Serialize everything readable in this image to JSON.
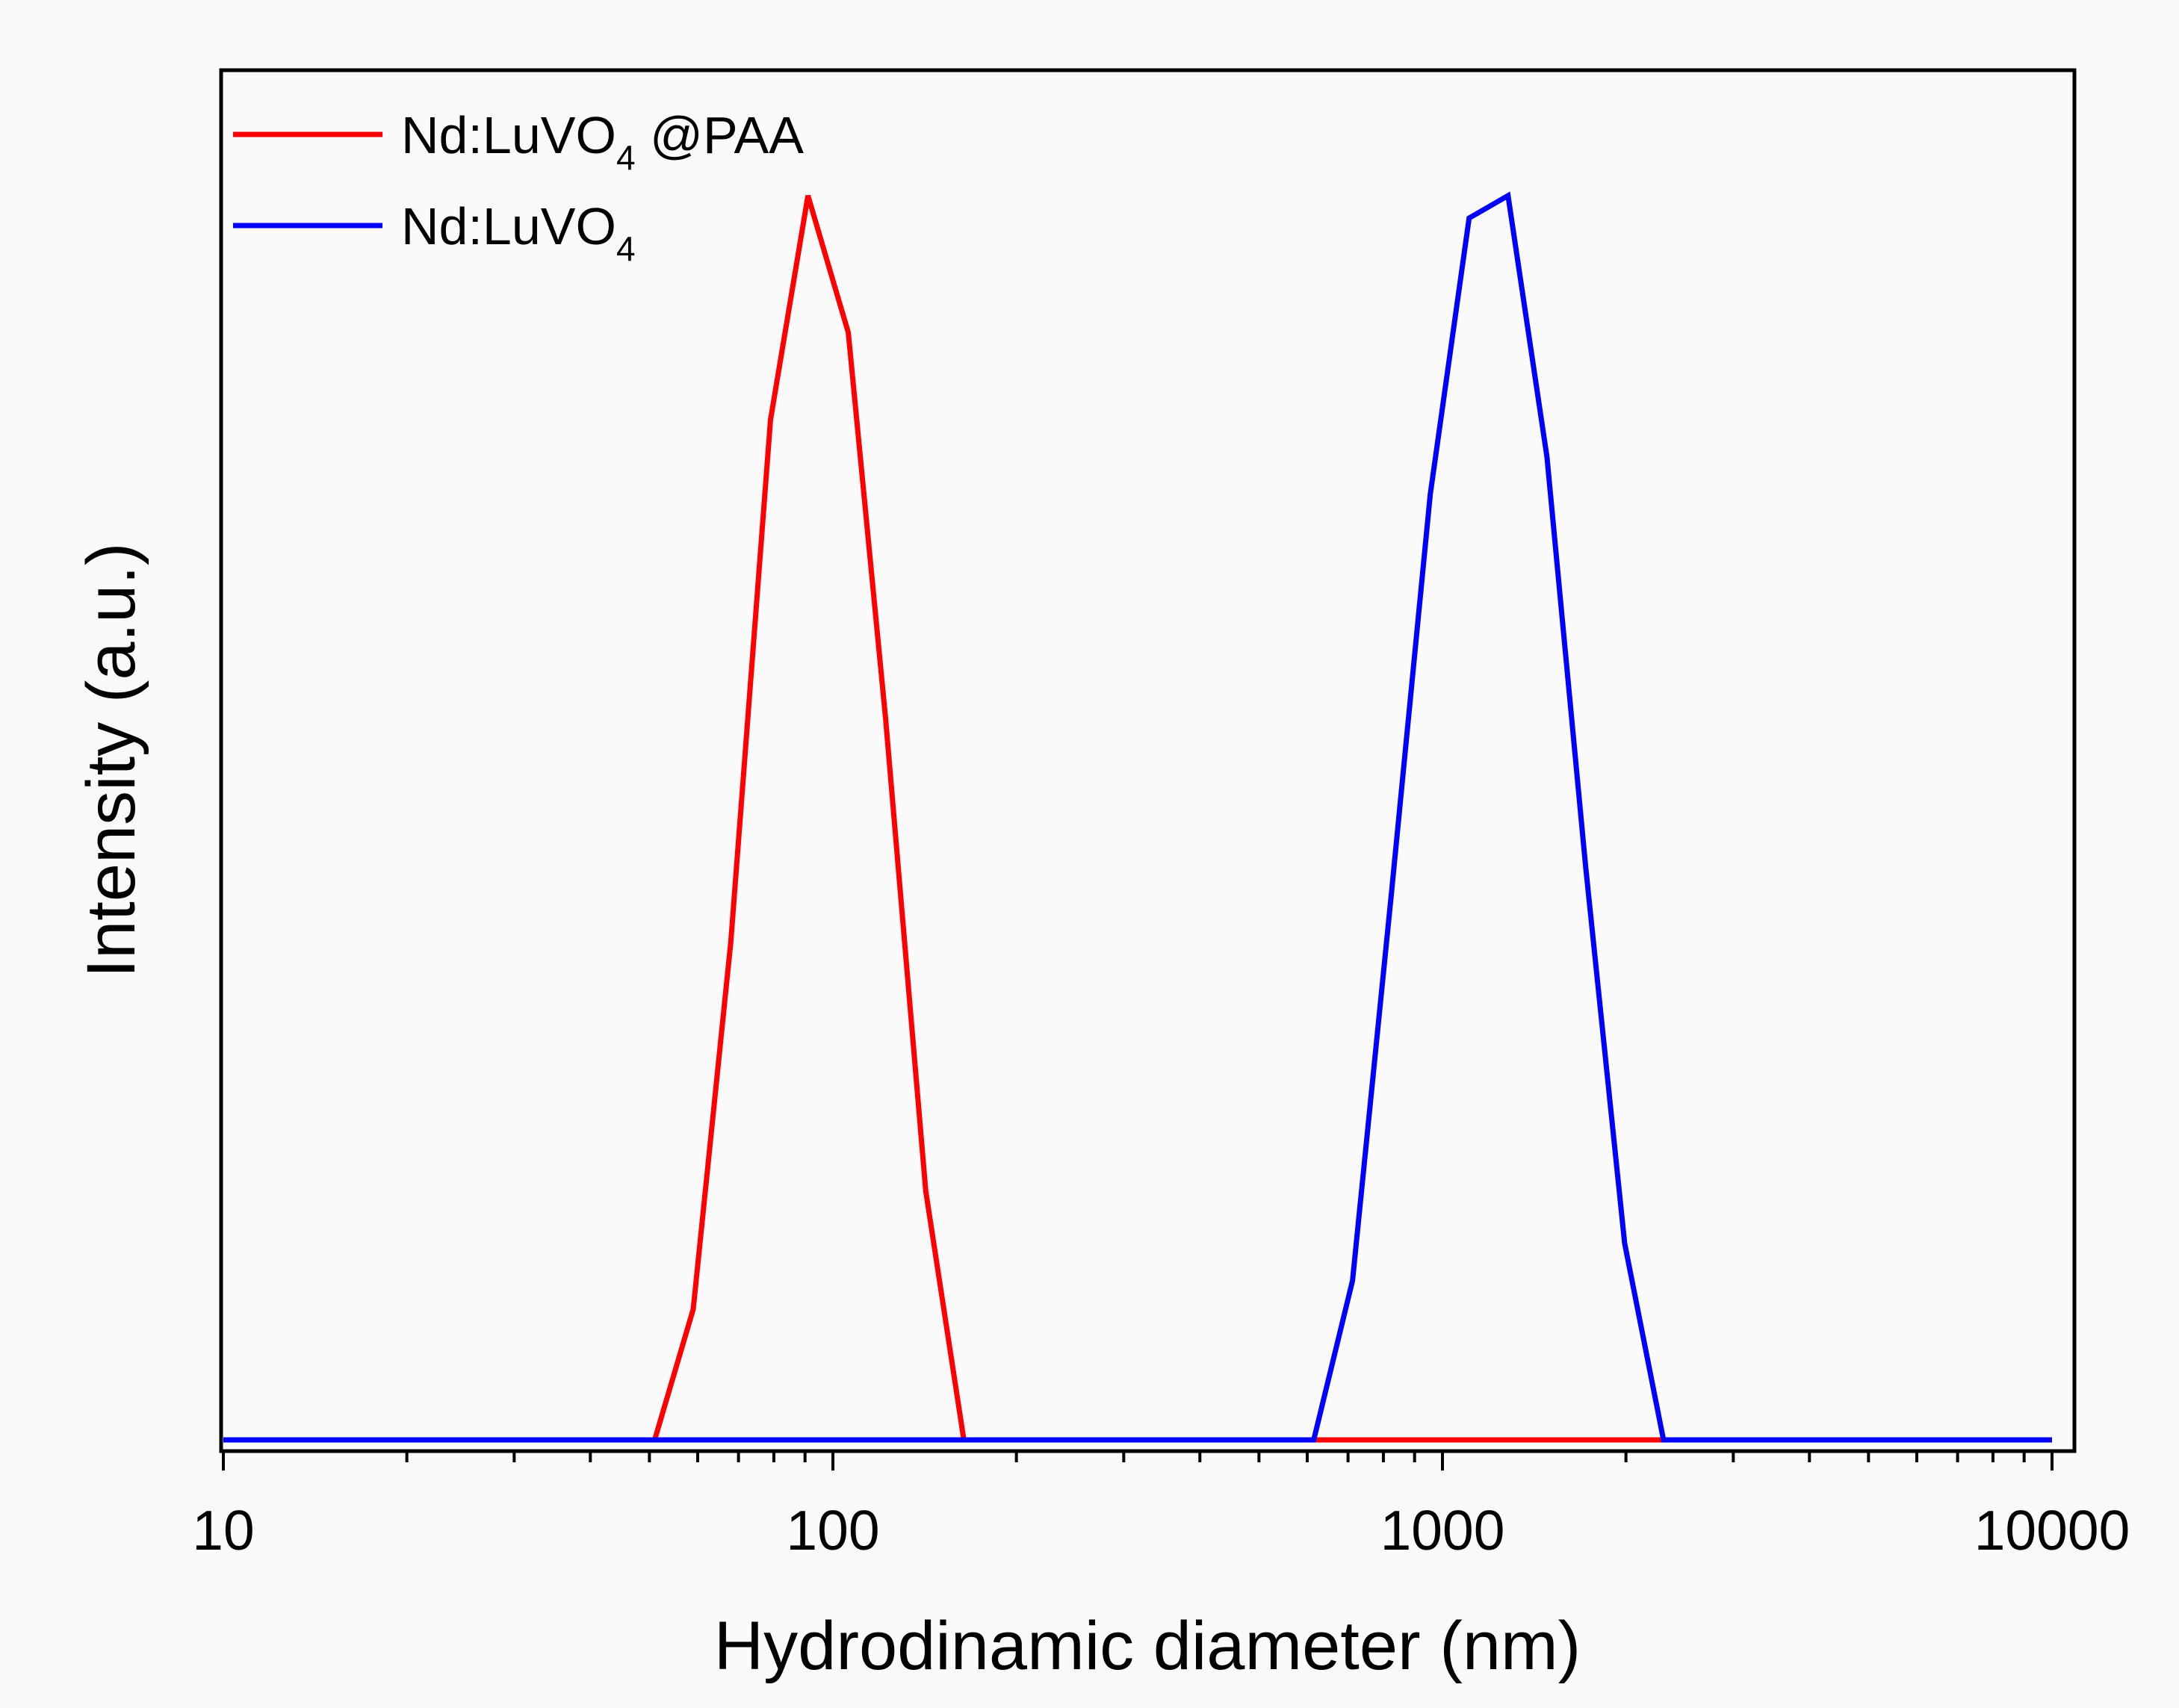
{
  "chart_data": {
    "type": "line",
    "title": "",
    "xlabel": "Hydrodinamic diameter (nm)",
    "ylabel": "Intensity (a.u.)",
    "xscale": "log",
    "xlim": [
      10,
      10000
    ],
    "ylim": [
      0,
      111
    ],
    "grid": false,
    "legend_position": "top-left",
    "x_ticks": [
      {
        "value": 10,
        "label": "10"
      },
      {
        "value": 100,
        "label": "100"
      },
      {
        "value": 1000,
        "label": "1000"
      },
      {
        "value": 10000,
        "label": "10000"
      }
    ],
    "series": [
      {
        "name": "Nd:LuVO4 @PAA",
        "legend_main": "Nd:LuVO",
        "legend_sub": "4",
        "legend_suffix": " @PAA",
        "color": "#ff0000",
        "x": [
          10,
          51,
          59,
          68,
          79,
          91,
          106,
          122,
          142,
          164,
          190,
          600,
          700,
          1000,
          2000,
          2300,
          10000
        ],
        "y": [
          0,
          0,
          10.5,
          40,
          82,
          100,
          89,
          58,
          20,
          0,
          0,
          0,
          0,
          0,
          0,
          0,
          0
        ]
      },
      {
        "name": "Nd:LuVO4",
        "legend_main": "Nd:LuVO",
        "legend_sub": "4",
        "legend_suffix": "",
        "color": "#0000ff",
        "x": [
          10,
          100,
          400,
          615,
          712,
          825,
          955,
          1106,
          1281,
          1484,
          1718,
          1990,
          2305,
          3000,
          10000
        ],
        "y": [
          0,
          0,
          0,
          0,
          12.8,
          44,
          76,
          98.2,
          100,
          79,
          46,
          15.8,
          0,
          0,
          0
        ]
      }
    ]
  }
}
